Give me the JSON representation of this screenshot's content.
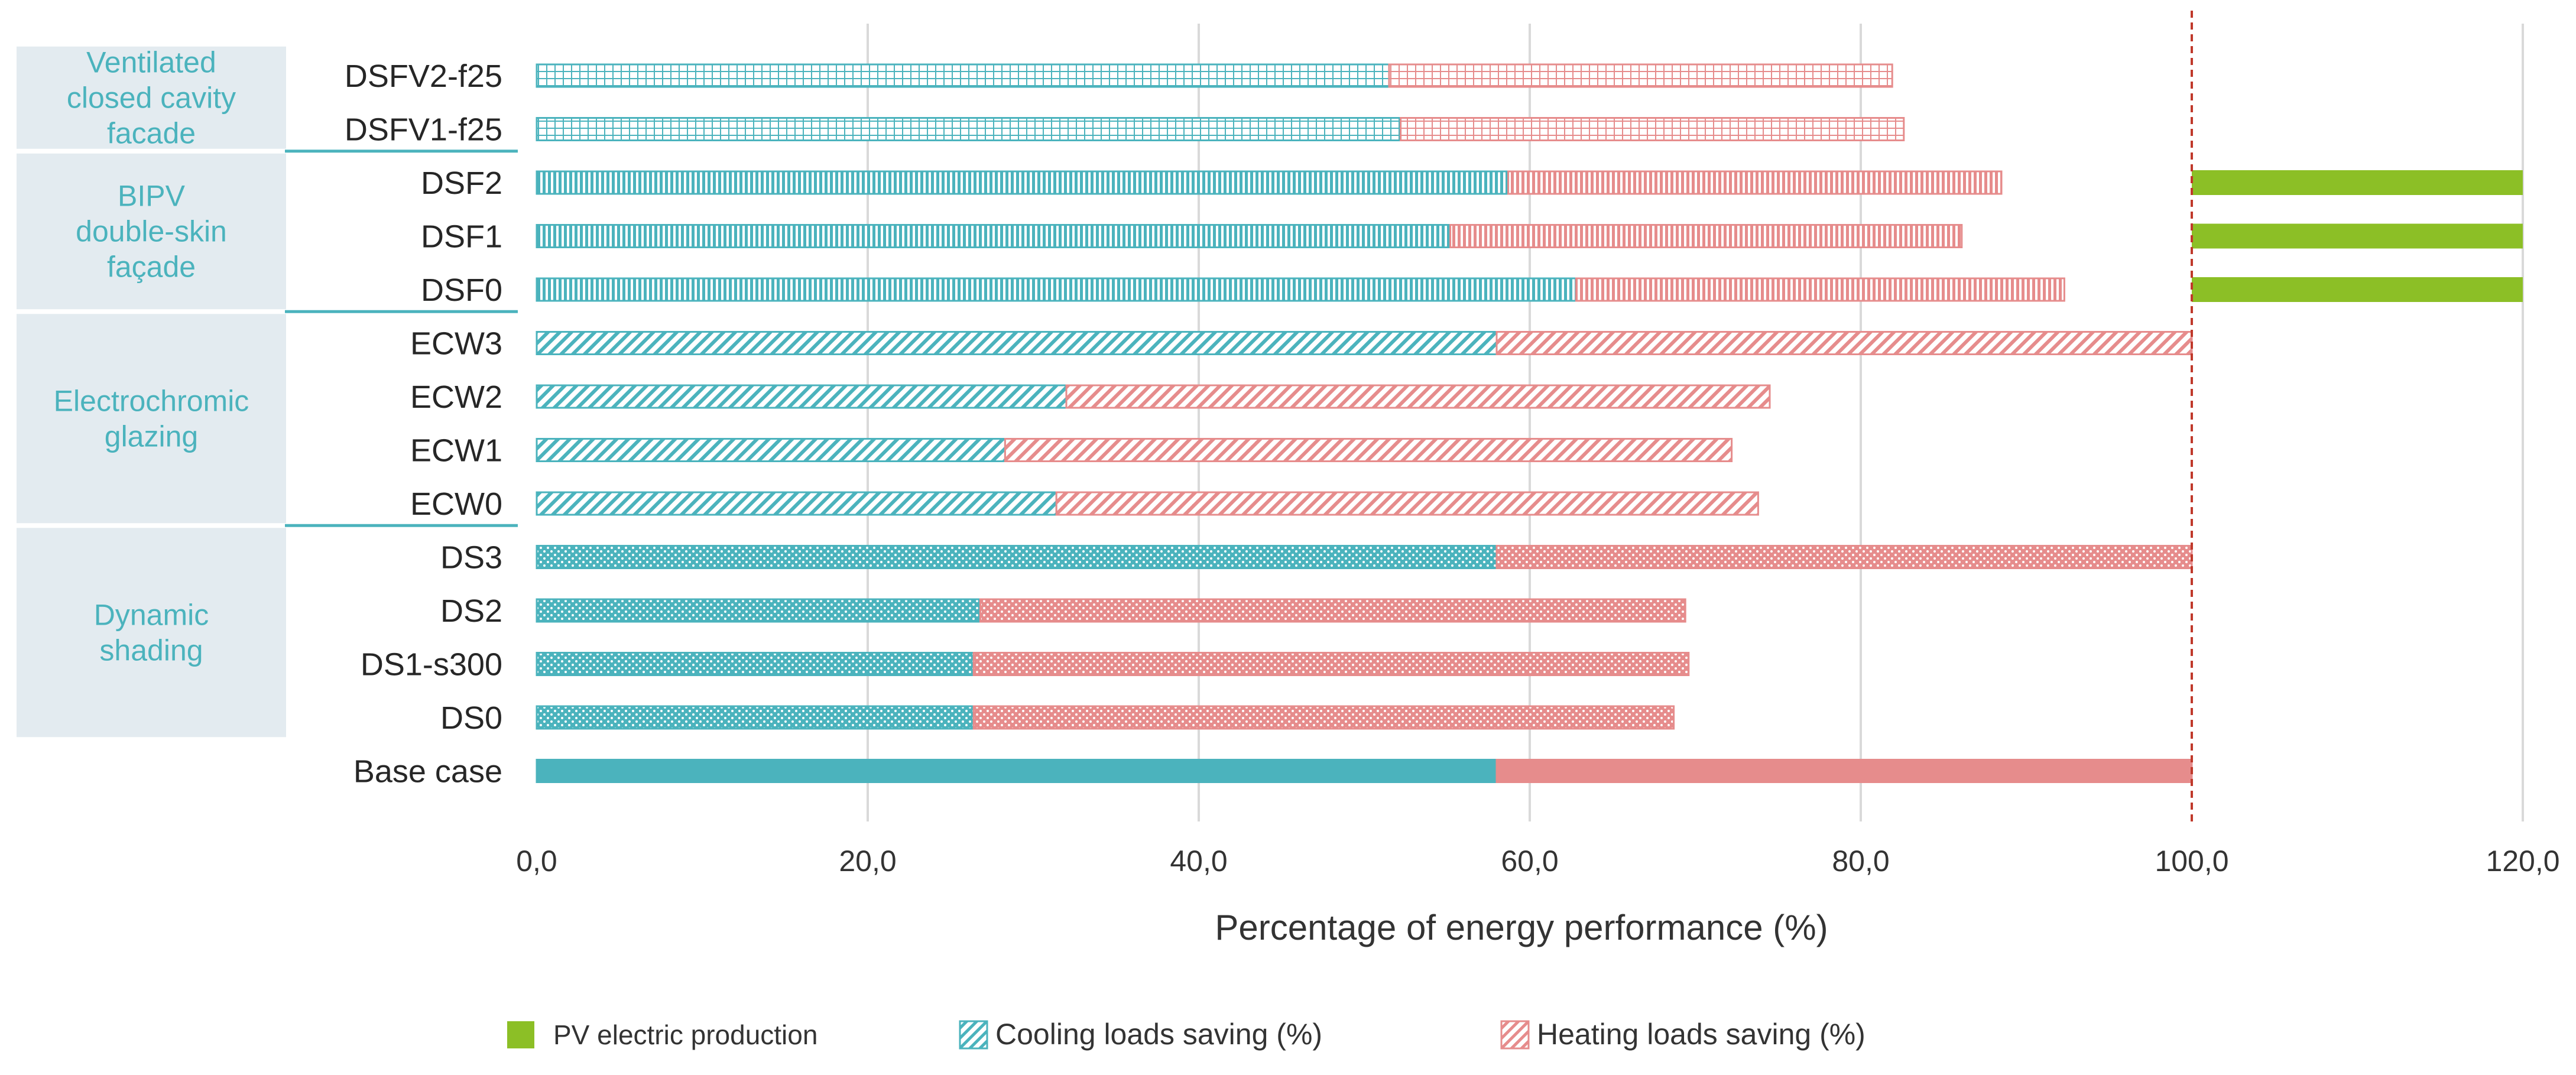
{
  "chart_data": {
    "type": "bar",
    "orientation": "horizontal",
    "stacked": true,
    "xlabel": "Percentage of energy performance (%)",
    "xlim": [
      0,
      120
    ],
    "xticks": [
      "0,0",
      "20,0",
      "40,0",
      "60,0",
      "80,0",
      "100,0",
      "120,0"
    ],
    "grid": true,
    "reference_line": 100,
    "legend_position": "bottom",
    "categories": [
      "DSFV2-f25",
      "DSFV1-f25",
      "DSF2",
      "DSF1",
      "DSF0",
      "ECW3",
      "ECW2",
      "ECW1",
      "ECW0",
      "DS3",
      "DS2",
      "DS1-s300",
      "DS0",
      "Base case"
    ],
    "series": [
      {
        "name": "Cooling loads saving (%)",
        "color": "#4bb3bd",
        "values": [
          51.5,
          52.2,
          58.7,
          55.2,
          62.8,
          58.0,
          32.0,
          28.3,
          31.4,
          58.0,
          26.8,
          26.4,
          26.4,
          58.0
        ]
      },
      {
        "name": "Heating loads saving (%)",
        "color": "#e68c8c",
        "values": [
          30.4,
          30.4,
          29.8,
          30.9,
          29.5,
          42.0,
          42.5,
          43.9,
          42.4,
          42.0,
          42.6,
          43.2,
          42.3,
          42.0
        ]
      },
      {
        "name": "PV electric production",
        "color": "#8cbf26",
        "values": [
          0,
          0,
          20.0,
          20.0,
          20.0,
          0,
          0,
          0,
          0,
          0,
          0,
          0,
          0,
          0
        ]
      }
    ],
    "patterns": [
      "grid",
      "grid",
      "vertical",
      "vertical",
      "vertical",
      "diagonal",
      "diagonal",
      "diagonal",
      "diagonal",
      "dots",
      "dots",
      "dots",
      "dots",
      "solid"
    ],
    "groups": [
      {
        "lines": [
          "Ventilated",
          "closed cavity",
          "facade"
        ],
        "rows": [
          0,
          1
        ]
      },
      {
        "lines": [
          "BIPV",
          "double-skin",
          "façade"
        ],
        "rows": [
          2,
          4
        ]
      },
      {
        "lines": [
          "Electrochromic",
          "glazing"
        ],
        "rows": [
          5,
          8
        ]
      },
      {
        "lines": [
          "Dynamic",
          "shading"
        ],
        "rows": [
          9,
          12
        ]
      }
    ],
    "legend": [
      "PV electric production",
      "Cooling loads saving (%)",
      "Heating loads saving (%)"
    ]
  }
}
